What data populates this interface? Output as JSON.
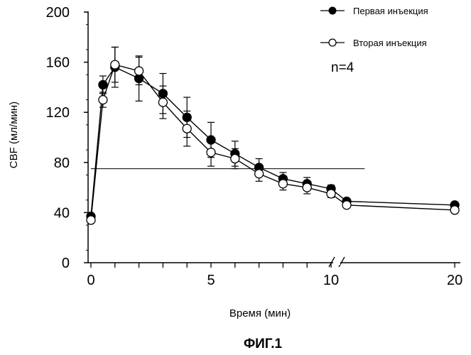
{
  "chart_data": {
    "type": "line",
    "caption": "ФИГ.1",
    "xlabel": "Время (мин)",
    "ylabel": "CBF (мл/мин)",
    "annotation": "n=4",
    "ylim": [
      0,
      200
    ],
    "yticks": [
      0,
      40,
      80,
      120,
      160,
      200
    ],
    "xticks": [
      0,
      5,
      10,
      20
    ],
    "axis_break": "between 10 and 20",
    "reference_line": {
      "y": 75,
      "x_from": 0,
      "x_to": 12.5
    },
    "legend_position": "top-right",
    "series": [
      {
        "name": "Первая инъекция",
        "marker": "filled-circle",
        "x": [
          0,
          0.5,
          1,
          2,
          3,
          4,
          5,
          6,
          7,
          8,
          9,
          10,
          11,
          20
        ],
        "y": [
          37,
          142,
          156,
          147,
          135,
          116,
          98,
          87,
          76,
          67,
          63,
          59,
          49,
          46
        ],
        "err": [
          0,
          7,
          16,
          18,
          16,
          16,
          14,
          10,
          7,
          5,
          5,
          3,
          2,
          2
        ]
      },
      {
        "name": "Вторая инъекция",
        "marker": "open-circle",
        "x": [
          0,
          0.5,
          1,
          2,
          3,
          4,
          5,
          6,
          7,
          8,
          9,
          10,
          11,
          20
        ],
        "y": [
          34,
          130,
          158,
          153,
          128,
          107,
          88,
          83,
          71,
          63,
          60,
          55,
          46,
          42
        ],
        "err": [
          0,
          6,
          14,
          11,
          13,
          14,
          11,
          8,
          6,
          5,
          5,
          3,
          2,
          2
        ]
      }
    ]
  }
}
